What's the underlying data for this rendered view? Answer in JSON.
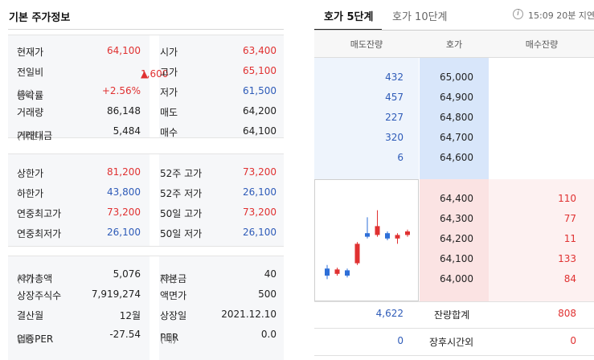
{
  "basic_info": {
    "title": "기본 주가정보",
    "section1": [
      {
        "label1": "현재가",
        "value1": "64,100",
        "label2": "시가",
        "value2": "63,400"
      },
      {
        "label1": "전일비",
        "value1": "1,600",
        "label2": "고가",
        "value2": "65,100"
      },
      {
        "label1": "등락률",
        "unit1": "(%)",
        "value1": "+2.56%",
        "label2": "저가",
        "value2": "61,500"
      },
      {
        "label1": "거래량",
        "value1": "86,148",
        "label2": "매도",
        "value2": "64,200"
      },
      {
        "label1": "거래대금",
        "unit1": "(백만)",
        "value1": "5,484",
        "label2": "매수",
        "value2": "64,100"
      }
    ],
    "section2": [
      {
        "label1": "상한가",
        "value1": "81,200",
        "label2": "52주 고가",
        "value2": "73,200"
      },
      {
        "label1": "하한가",
        "value1": "43,800",
        "label2": "52주 저가",
        "value2": "26,100"
      },
      {
        "label1": "연중최고가",
        "value1": "73,200",
        "label2": "50일 고가",
        "value2": "73,200"
      },
      {
        "label1": "연중최저가",
        "value1": "26,100",
        "label2": "50일 저가",
        "value2": "26,100"
      }
    ],
    "section3": [
      {
        "label1": "시가총액",
        "unit1": "(억)",
        "value1": "5,076",
        "label2": "자본금",
        "unit2": "(억)",
        "value2": "40"
      },
      {
        "label1": "상장주식수",
        "value1": "7,919,274",
        "label2": "액면가",
        "value2": "500"
      },
      {
        "label1": "결산월",
        "value1": "12월",
        "label2": "상장일",
        "value2": "2021.12.10"
      },
      {
        "label1": "업종PER",
        "unit1": "(배)",
        "value1": "-27.54",
        "label2": "PER",
        "unit2": "(배)",
        "value2": "0.0"
      }
    ],
    "change_arrow": "▲"
  },
  "orderbook": {
    "tabs": [
      {
        "label": "호가 5단계",
        "active": true
      },
      {
        "label": "호가 10단계",
        "active": false
      }
    ],
    "info_icon": "i",
    "delay_text": "15:09 20분 지연",
    "headers": [
      "매도잔량",
      "호가",
      "매수잔량"
    ],
    "asks": [
      {
        "qty": "432",
        "price": "65,000"
      },
      {
        "qty": "457",
        "price": "64,900"
      },
      {
        "qty": "227",
        "price": "64,800"
      },
      {
        "qty": "320",
        "price": "64,700"
      },
      {
        "qty": "6",
        "price": "64,600"
      }
    ],
    "bids": [
      {
        "price": "64,400",
        "qty": "110"
      },
      {
        "price": "64,300",
        "qty": "77"
      },
      {
        "price": "64,200",
        "qty": "11"
      },
      {
        "price": "64,100",
        "qty": "133"
      },
      {
        "price": "64,000",
        "qty": "84"
      }
    ],
    "totals": {
      "ask_total": "4,622",
      "label": "잔량합계",
      "bid_total": "808"
    },
    "after_hours": {
      "ask": "0",
      "label": "장후시간외",
      "bid": "0"
    },
    "mini_chart": {
      "colors": {
        "up": "#e03131",
        "down": "#2e6fd8"
      },
      "candles": [
        {
          "dir": "down",
          "open": 61900,
          "close": 61500,
          "high": 62100,
          "low": 61300
        },
        {
          "dir": "up",
          "open": 61600,
          "close": 61850,
          "high": 61950,
          "low": 61500
        },
        {
          "dir": "down",
          "open": 61800,
          "close": 61500,
          "high": 61900,
          "low": 61400
        },
        {
          "dir": "up",
          "open": 62200,
          "close": 63300,
          "high": 63400,
          "low": 62100
        },
        {
          "dir": "down",
          "open": 63900,
          "close": 63700,
          "high": 64800,
          "low": 63600
        },
        {
          "dir": "up",
          "open": 63800,
          "close": 64300,
          "high": 65200,
          "low": 63700
        },
        {
          "dir": "down",
          "open": 63900,
          "close": 63600,
          "high": 64000,
          "low": 63500
        },
        {
          "dir": "up",
          "open": 63600,
          "close": 63800,
          "high": 63900,
          "low": 63300
        },
        {
          "dir": "up",
          "open": 63800,
          "close": 64000,
          "high": 64100,
          "low": 63700
        }
      ]
    }
  }
}
